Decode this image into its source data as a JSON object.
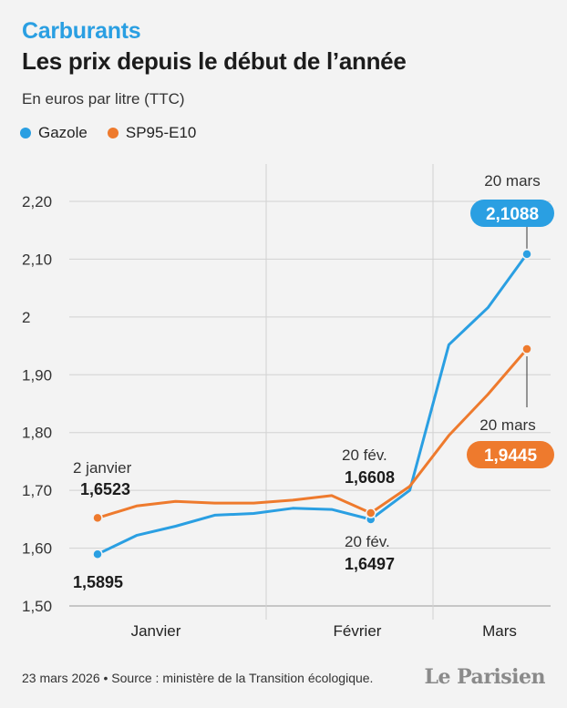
{
  "header": {
    "kicker": "Carburants",
    "title": "Les prix depuis le début de l’année",
    "subtitle": "En euros par litre (TTC)"
  },
  "legend": [
    {
      "label": "Gazole",
      "color": "#2a9fe2"
    },
    {
      "label": "SP95-E10",
      "color": "#ee7a2d"
    }
  ],
  "footer": {
    "source": "23 mars 2026 • Source : ministère de la Transition écologique.",
    "brand": "Le Parisien"
  },
  "chart_data": {
    "type": "line",
    "x_unit": "date (2026)",
    "ylim": [
      1.5,
      2.2
    ],
    "yticks": [
      {
        "value": 1.5,
        "label": "1,50"
      },
      {
        "value": 1.6,
        "label": "1,60"
      },
      {
        "value": 1.7,
        "label": "1,70"
      },
      {
        "value": 1.8,
        "label": "1,80"
      },
      {
        "value": 1.9,
        "label": "1,90"
      },
      {
        "value": 2.0,
        "label": "2"
      },
      {
        "value": 2.1,
        "label": "2,10"
      },
      {
        "value": 2.2,
        "label": "2,20"
      }
    ],
    "grid": true,
    "legend_position": "top-left",
    "month_labels": [
      "Janvier",
      "Février",
      "Mars"
    ],
    "series": [
      {
        "name": "Gazole",
        "color": "#2a9fe2",
        "points": [
          {
            "x": "2026-01-02",
            "y": 1.5895
          },
          {
            "x": "2026-01-09",
            "y": 1.622
          },
          {
            "x": "2026-01-16",
            "y": 1.638
          },
          {
            "x": "2026-01-23",
            "y": 1.657
          },
          {
            "x": "2026-01-30",
            "y": 1.66
          },
          {
            "x": "2026-02-06",
            "y": 1.669
          },
          {
            "x": "2026-02-13",
            "y": 1.667
          },
          {
            "x": "2026-02-20",
            "y": 1.6497
          },
          {
            "x": "2026-02-27",
            "y": 1.7
          },
          {
            "x": "2026-03-06",
            "y": 1.952
          },
          {
            "x": "2026-03-13",
            "y": 2.016
          },
          {
            "x": "2026-03-20",
            "y": 2.1088
          }
        ]
      },
      {
        "name": "SP95-E10",
        "color": "#ee7a2d",
        "points": [
          {
            "x": "2026-01-02",
            "y": 1.6523
          },
          {
            "x": "2026-01-09",
            "y": 1.673
          },
          {
            "x": "2026-01-16",
            "y": 1.681
          },
          {
            "x": "2026-01-23",
            "y": 1.678
          },
          {
            "x": "2026-01-30",
            "y": 1.678
          },
          {
            "x": "2026-02-06",
            "y": 1.683
          },
          {
            "x": "2026-02-13",
            "y": 1.691
          },
          {
            "x": "2026-02-20",
            "y": 1.6608
          },
          {
            "x": "2026-02-27",
            "y": 1.707
          },
          {
            "x": "2026-03-06",
            "y": 1.795
          },
          {
            "x": "2026-03-13",
            "y": 1.866
          },
          {
            "x": "2026-03-20",
            "y": 1.9445
          }
        ]
      }
    ],
    "annotations": [
      {
        "series": "Gazole",
        "date_label": "",
        "value_label": "1,5895",
        "style": "plain"
      },
      {
        "series": "SP95-E10",
        "date_label": "2 janvier",
        "value_label": "1,6523",
        "style": "plain"
      },
      {
        "series": "SP95-E10",
        "date_label": "20 fév.",
        "value_label": "1,6608",
        "style": "plain"
      },
      {
        "series": "Gazole",
        "date_label": "20 fév.",
        "value_label": "1,6497",
        "style": "plain"
      },
      {
        "series": "Gazole",
        "date_label": "20 mars",
        "value_label": "2,1088",
        "style": "badge"
      },
      {
        "series": "SP95-E10",
        "date_label": "20 mars",
        "value_label": "1,9445",
        "style": "badge"
      }
    ]
  }
}
